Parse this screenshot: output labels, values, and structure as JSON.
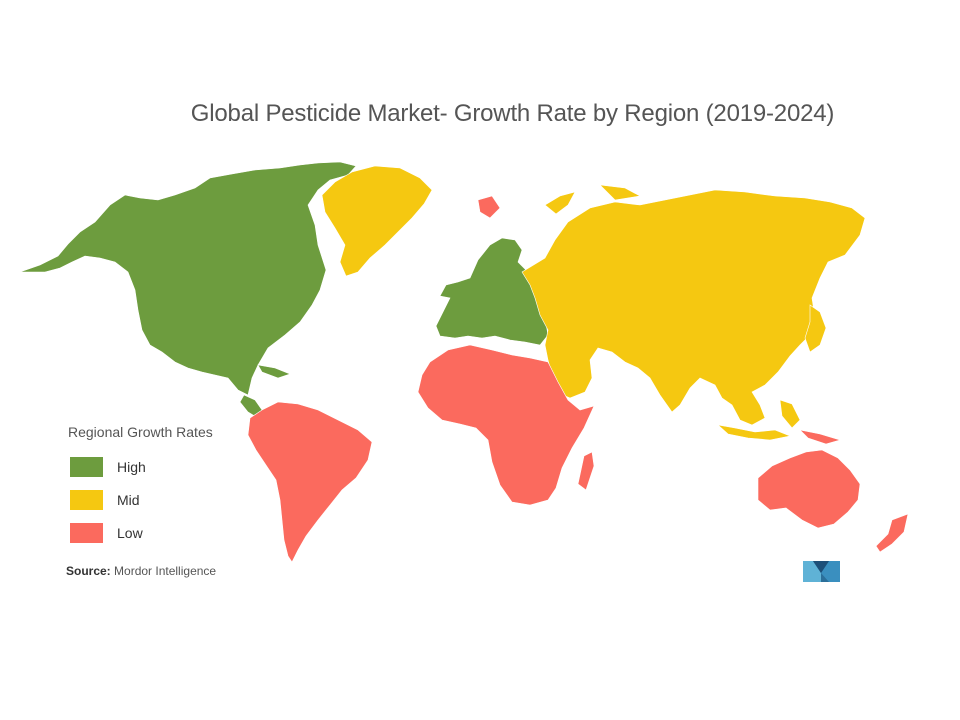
{
  "title": "Global Pesticide Market- Growth Rate by Region (2019-2024)",
  "legend": {
    "title": "Regional Growth Rates",
    "items": [
      {
        "key": "high",
        "label": "High",
        "color": "#6d9c3e"
      },
      {
        "key": "mid",
        "label": "Mid",
        "color": "#f5c811"
      },
      {
        "key": "low",
        "label": "Low",
        "color": "#fb6a5e"
      }
    ]
  },
  "source": {
    "label": "Source:",
    "text": "Mordor Intelligence"
  },
  "regions": [
    {
      "region": "North America",
      "growth": "High"
    },
    {
      "region": "Europe",
      "growth": "High"
    },
    {
      "region": "Greenland",
      "growth": "Mid"
    },
    {
      "region": "Russia and Central Asia",
      "growth": "Mid"
    },
    {
      "region": "Middle East",
      "growth": "Mid"
    },
    {
      "region": "Asia",
      "growth": "Mid"
    },
    {
      "region": "South America",
      "growth": "Low"
    },
    {
      "region": "Africa",
      "growth": "Low"
    },
    {
      "region": "Australia and Oceania",
      "growth": "Low"
    }
  ]
}
